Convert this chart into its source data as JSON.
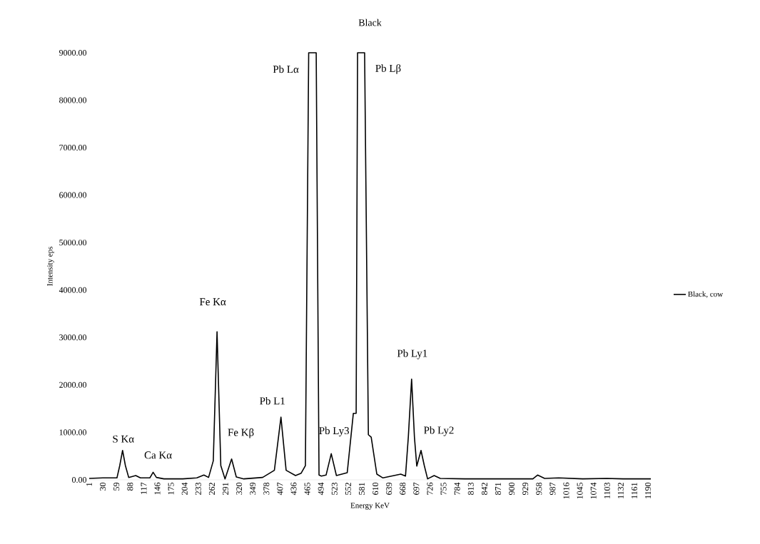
{
  "chart_data": {
    "type": "line",
    "title": "Black",
    "xlabel": "Energy KeV",
    "ylabel": "Intensity eps",
    "xlim": [
      1,
      1196
    ],
    "ylim": [
      0,
      9000
    ],
    "xticks": [
      1,
      30,
      59,
      88,
      117,
      146,
      175,
      204,
      233,
      262,
      291,
      320,
      349,
      378,
      407,
      436,
      465,
      494,
      523,
      552,
      581,
      610,
      639,
      668,
      697,
      726,
      755,
      784,
      813,
      842,
      871,
      900,
      929,
      958,
      987,
      1016,
      1045,
      1074,
      1103,
      1132,
      1161,
      1190
    ],
    "yticks": [
      {
        "value": 0,
        "label": "0.00"
      },
      {
        "value": 1000,
        "label": "1000.00"
      },
      {
        "value": 2000,
        "label": "2000.00"
      },
      {
        "value": 3000,
        "label": "3000.00"
      },
      {
        "value": 4000,
        "label": "4000.00"
      },
      {
        "value": 5000,
        "label": "5000.00"
      },
      {
        "value": 6000,
        "label": "6000.00"
      },
      {
        "value": 7000,
        "label": "7000.00"
      },
      {
        "value": 8000,
        "label": "8000.00"
      },
      {
        "value": 9000,
        "label": "9000.00"
      }
    ],
    "grid": false,
    "legend": "right",
    "marker": "none",
    "line_style": "solid",
    "series": [
      {
        "name": "Black, cow",
        "color": "#000000",
        "x": [
          1,
          30,
          60,
          66,
          72,
          78,
          85,
          100,
          110,
          130,
          137,
          144,
          160,
          200,
          230,
          245,
          255,
          265,
          273,
          281,
          290,
          304,
          314,
          330,
          370,
          395,
          409,
          420,
          440,
          452,
          461,
          468,
          484,
          490,
          495,
          505,
          516,
          527,
          550,
          563,
          569,
          572,
          587,
          595,
          601,
          613,
          626,
          664,
          674,
          680,
          687,
          693,
          698,
          707,
          714,
          721,
          735,
          748,
          800,
          900,
          945,
          955,
          970,
          1000,
          1051,
          1102,
          1137,
          1196
        ],
        "values": [
          30,
          40,
          40,
          300,
          620,
          300,
          50,
          90,
          40,
          40,
          160,
          50,
          20,
          20,
          40,
          100,
          50,
          400,
          3120,
          300,
          20,
          440,
          60,
          20,
          50,
          200,
          1320,
          200,
          90,
          140,
          300,
          9000,
          9000,
          100,
          80,
          100,
          550,
          90,
          150,
          1400,
          1400,
          9000,
          9000,
          950,
          900,
          120,
          40,
          120,
          80,
          900,
          2120,
          900,
          290,
          620,
          300,
          20,
          90,
          30,
          20,
          20,
          20,
          100,
          30,
          40,
          20,
          30,
          20,
          20
        ]
      }
    ],
    "annotations": [
      {
        "text": "S Kα",
        "x": 72,
        "y": 620
      },
      {
        "text": "Ca Kα",
        "x": 137,
        "y": 160
      },
      {
        "text": "Fe Kα",
        "x": 273,
        "y": 3120
      },
      {
        "text": "Fe Kβ",
        "x": 304,
        "y": 440
      },
      {
        "text": "Pb L1",
        "x": 409,
        "y": 1320
      },
      {
        "text": "Pb Lα",
        "x": 468,
        "y": 9000
      },
      {
        "text": "Pb Lβ",
        "x": 587,
        "y": 9000
      },
      {
        "text": "Pb Ly3",
        "x": 516,
        "y": 550
      },
      {
        "text": "Pb Ly1",
        "x": 687,
        "y": 2120
      },
      {
        "text": "Pb Ly2",
        "x": 707,
        "y": 620
      }
    ]
  }
}
